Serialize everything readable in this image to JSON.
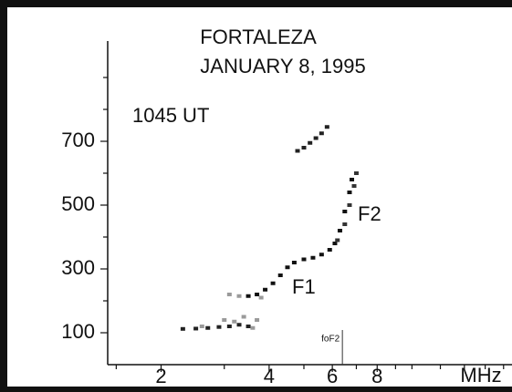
{
  "chart_data": {
    "type": "scatter",
    "title": "FORTALEZA",
    "subtitle": "JANUARY 8, 1995",
    "annotations": [
      "1045 UT",
      "F1",
      "F2"
    ],
    "x_label": "MHz",
    "xscale": "log",
    "xlim": [
      1.42,
      19
    ],
    "xticks": [
      2,
      4,
      6,
      8
    ],
    "xminorticks": [
      1.5,
      3,
      5,
      7,
      9,
      10,
      12,
      14,
      16,
      18
    ],
    "ylim": [
      0,
      1000
    ],
    "yticks": [
      100,
      300,
      500,
      700
    ],
    "yminorticks": [
      200,
      400,
      600,
      800,
      900
    ],
    "markers": [
      {
        "label": "foF2",
        "x": 6.4
      }
    ],
    "series": [
      {
        "color": "#222222",
        "x": [
          2.3,
          2.5,
          2.7,
          2.9,
          3.1,
          3.3,
          3.5
        ],
        "values": [
          112,
          113,
          115,
          118,
          120,
          125,
          120
        ]
      },
      {
        "color": "#9a9a9a",
        "x": [
          2.6,
          3.0,
          3.2,
          3.4,
          3.7,
          3.6,
          3.1,
          3.3,
          3.8
        ],
        "values": [
          120,
          140,
          135,
          150,
          140,
          115,
          220,
          215,
          210
        ]
      },
      {
        "color": "#111111",
        "x": [
          3.5,
          3.7,
          3.9,
          4.1,
          4.3,
          4.5,
          4.7,
          5.0,
          5.3,
          5.6,
          5.9,
          6.1,
          6.3,
          6.5,
          6.7,
          6.8
        ],
        "values": [
          215,
          220,
          235,
          255,
          280,
          305,
          320,
          330,
          335,
          345,
          360,
          380,
          420,
          480,
          540,
          580
        ]
      },
      {
        "color": "#333333",
        "x": [
          6.2,
          6.5,
          6.7,
          6.9,
          7.0
        ],
        "values": [
          390,
          440,
          500,
          560,
          600
        ]
      },
      {
        "color": "#222222",
        "x": [
          4.8,
          5.0,
          5.2,
          5.4,
          5.6,
          5.8
        ],
        "values": [
          670,
          680,
          695,
          710,
          725,
          745
        ]
      }
    ]
  }
}
